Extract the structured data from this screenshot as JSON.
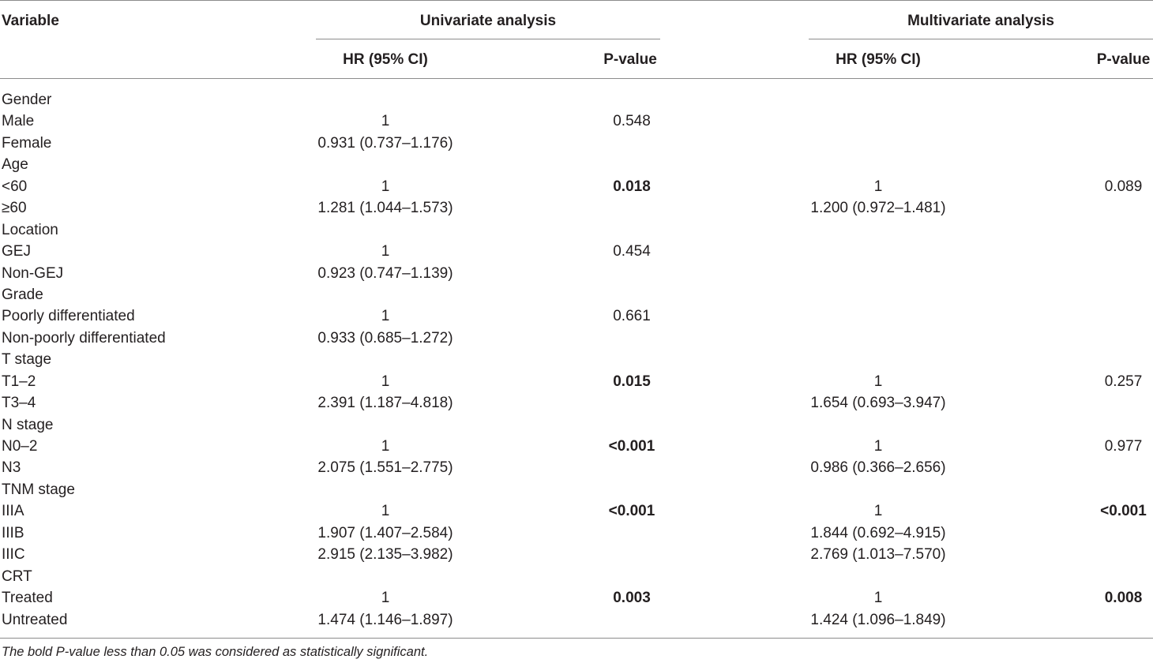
{
  "table": {
    "headers": {
      "variable": "Variable",
      "univariate": "Univariate analysis",
      "multivariate": "Multivariate analysis",
      "hr_ci": "HR (95% CI)",
      "p_value": "P-value"
    },
    "rows": [
      {
        "variable": "Gender",
        "uni_hr": "",
        "uni_p": "",
        "uni_p_bold": false,
        "multi_hr": "",
        "multi_p": "",
        "multi_p_bold": false
      },
      {
        "variable": "Male",
        "uni_hr": "1",
        "uni_p": "0.548",
        "uni_p_bold": false,
        "multi_hr": "",
        "multi_p": "",
        "multi_p_bold": false
      },
      {
        "variable": "Female",
        "uni_hr": "0.931 (0.737–1.176)",
        "uni_p": "",
        "uni_p_bold": false,
        "multi_hr": "",
        "multi_p": "",
        "multi_p_bold": false
      },
      {
        "variable": "Age",
        "uni_hr": "",
        "uni_p": "",
        "uni_p_bold": false,
        "multi_hr": "",
        "multi_p": "",
        "multi_p_bold": false
      },
      {
        "variable": "<60",
        "uni_hr": "1",
        "uni_p": "0.018",
        "uni_p_bold": true,
        "multi_hr": "1",
        "multi_p": "0.089",
        "multi_p_bold": false
      },
      {
        "variable": "≥60",
        "uni_hr": "1.281 (1.044–1.573)",
        "uni_p": "",
        "uni_p_bold": false,
        "multi_hr": "1.200 (0.972–1.481)",
        "multi_p": "",
        "multi_p_bold": false
      },
      {
        "variable": "Location",
        "uni_hr": "",
        "uni_p": "",
        "uni_p_bold": false,
        "multi_hr": "",
        "multi_p": "",
        "multi_p_bold": false
      },
      {
        "variable": "GEJ",
        "uni_hr": "1",
        "uni_p": "0.454",
        "uni_p_bold": false,
        "multi_hr": "",
        "multi_p": "",
        "multi_p_bold": false
      },
      {
        "variable": "Non-GEJ",
        "uni_hr": "0.923 (0.747–1.139)",
        "uni_p": "",
        "uni_p_bold": false,
        "multi_hr": "",
        "multi_p": "",
        "multi_p_bold": false
      },
      {
        "variable": "Grade",
        "uni_hr": "",
        "uni_p": "",
        "uni_p_bold": false,
        "multi_hr": "",
        "multi_p": "",
        "multi_p_bold": false
      },
      {
        "variable": "Poorly differentiated",
        "uni_hr": "1",
        "uni_p": "0.661",
        "uni_p_bold": false,
        "multi_hr": "",
        "multi_p": "",
        "multi_p_bold": false
      },
      {
        "variable": "Non-poorly differentiated",
        "uni_hr": "0.933 (0.685–1.272)",
        "uni_p": "",
        "uni_p_bold": false,
        "multi_hr": "",
        "multi_p": "",
        "multi_p_bold": false
      },
      {
        "variable": "T stage",
        "uni_hr": "",
        "uni_p": "",
        "uni_p_bold": false,
        "multi_hr": "",
        "multi_p": "",
        "multi_p_bold": false
      },
      {
        "variable": "T1–2",
        "uni_hr": "1",
        "uni_p": "0.015",
        "uni_p_bold": true,
        "multi_hr": "1",
        "multi_p": "0.257",
        "multi_p_bold": false
      },
      {
        "variable": "T3–4",
        "uni_hr": "2.391 (1.187–4.818)",
        "uni_p": "",
        "uni_p_bold": false,
        "multi_hr": "1.654 (0.693–3.947)",
        "multi_p": "",
        "multi_p_bold": false
      },
      {
        "variable": "N stage",
        "uni_hr": "",
        "uni_p": "",
        "uni_p_bold": false,
        "multi_hr": "",
        "multi_p": "",
        "multi_p_bold": false
      },
      {
        "variable": "N0–2",
        "uni_hr": "1",
        "uni_p": "<0.001",
        "uni_p_bold": true,
        "multi_hr": "1",
        "multi_p": "0.977",
        "multi_p_bold": false
      },
      {
        "variable": "N3",
        "uni_hr": "2.075 (1.551–2.775)",
        "uni_p": "",
        "uni_p_bold": false,
        "multi_hr": "0.986 (0.366–2.656)",
        "multi_p": "",
        "multi_p_bold": false
      },
      {
        "variable": "TNM stage",
        "uni_hr": "",
        "uni_p": "",
        "uni_p_bold": false,
        "multi_hr": "",
        "multi_p": "",
        "multi_p_bold": false
      },
      {
        "variable": "IIIA",
        "uni_hr": "1",
        "uni_p": "<0.001",
        "uni_p_bold": true,
        "multi_hr": "1",
        "multi_p": "<0.001",
        "multi_p_bold": true
      },
      {
        "variable": "IIIB",
        "uni_hr": "1.907 (1.407–2.584)",
        "uni_p": "",
        "uni_p_bold": false,
        "multi_hr": "1.844 (0.692–4.915)",
        "multi_p": "",
        "multi_p_bold": false
      },
      {
        "variable": "IIIC",
        "uni_hr": "2.915 (2.135–3.982)",
        "uni_p": "",
        "uni_p_bold": false,
        "multi_hr": "2.769 (1.013–7.570)",
        "multi_p": "",
        "multi_p_bold": false
      },
      {
        "variable": "CRT",
        "uni_hr": "",
        "uni_p": "",
        "uni_p_bold": false,
        "multi_hr": "",
        "multi_p": "",
        "multi_p_bold": false
      },
      {
        "variable": "Treated",
        "uni_hr": "1",
        "uni_p": "0.003",
        "uni_p_bold": true,
        "multi_hr": "1",
        "multi_p": "0.008",
        "multi_p_bold": true
      },
      {
        "variable": "Untreated",
        "uni_hr": "1.474 (1.146–1.897)",
        "uni_p": "",
        "uni_p_bold": false,
        "multi_hr": "1.424 (1.096–1.849)",
        "multi_p": "",
        "multi_p_bold": false
      }
    ],
    "footnote": "The bold P-value less than 0.05 was considered as statistically significant."
  }
}
